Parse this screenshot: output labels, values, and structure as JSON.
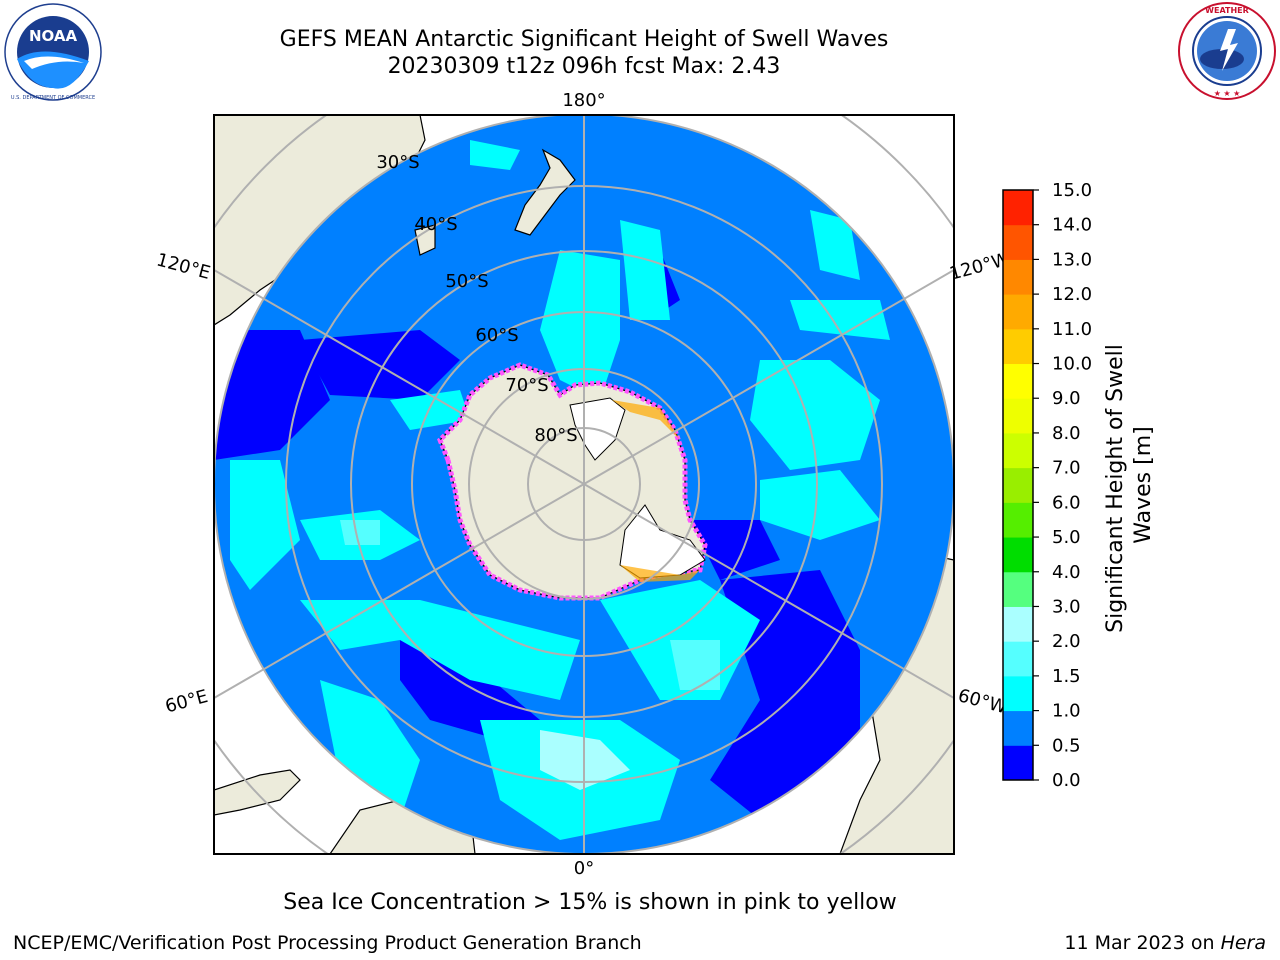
{
  "header": {
    "title_line1": "GEFS MEAN Antarctic Significant Height of Swell Waves",
    "title_line2": "20230309 t12z 096h fcst   Max: 2.43"
  },
  "logos": {
    "left": {
      "text": "NOAA",
      "ring_text": "NATIONAL OCEANIC AND ATMOSPHERIC ADMINISTRATION · U.S. DEPARTMENT OF COMMERCE",
      "icon": "noaa-logo"
    },
    "right": {
      "ring_text": "NATIONAL WEATHER SERVICE",
      "icon": "nws-logo"
    }
  },
  "map": {
    "longitude_labels": {
      "top": "180°",
      "bottom": "0°",
      "upper_left": "120°E",
      "lower_left": "60°E",
      "upper_right": "120°W",
      "lower_right": "60°W"
    },
    "latitude_labels": [
      "30°S",
      "40°S",
      "50°S",
      "60°S",
      "70°S",
      "80°S"
    ],
    "colors": {
      "land": "#ecebdb",
      "ocean_low": "#0000ff",
      "ocean_mid": "#0080ff",
      "ocean_cyan": "#00ffff",
      "ocean_light": "#55ffff",
      "ice_pink": "#ff55ff",
      "grid": "#b0b0b0"
    }
  },
  "colorbar": {
    "label_line1": "Significant Height of Swell",
    "label_line2": "Waves [m]",
    "ticks": [
      "0.0",
      "0.5",
      "1.0",
      "1.5",
      "2.0",
      "3.0",
      "4.0",
      "5.0",
      "6.0",
      "7.0",
      "8.0",
      "9.0",
      "10.0",
      "11.0",
      "12.0",
      "13.0",
      "14.0",
      "15.0"
    ],
    "colors": [
      "#0000ff",
      "#0080ff",
      "#00ffff",
      "#55ffff",
      "#aaffff",
      "#55ff7f",
      "#00dd00",
      "#55ee00",
      "#99ee00",
      "#ccff00",
      "#eeff00",
      "#ffff00",
      "#ffcc00",
      "#ffaa00",
      "#ff8800",
      "#ff5500",
      "#ff2200"
    ]
  },
  "note": "Sea Ice Concentration > 15% is shown in pink to yellow",
  "footer": {
    "left": "NCEP/EMC/Verification Post Processing Product Generation Branch",
    "right_date": "11 Mar 2023 on ",
    "right_machine": "Hera"
  }
}
